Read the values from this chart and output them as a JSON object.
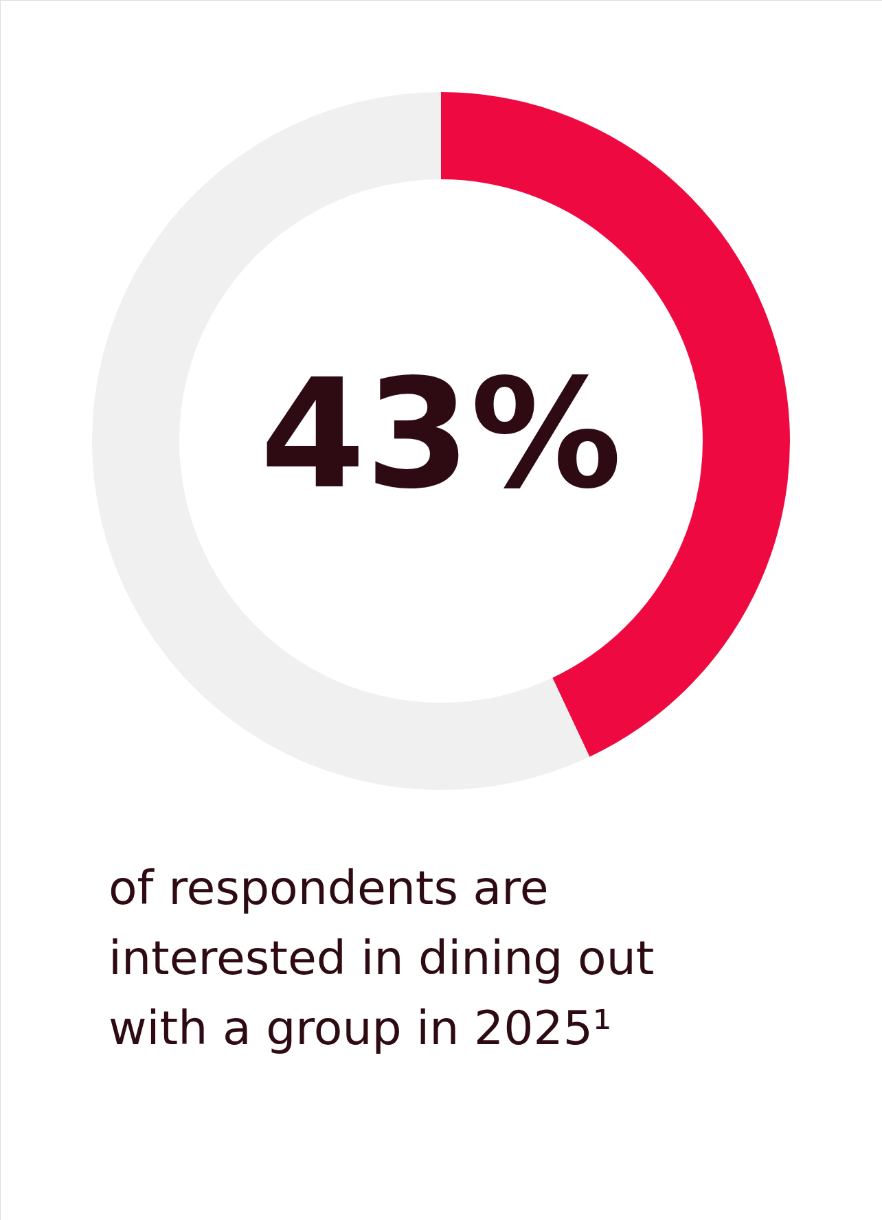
{
  "chart_data": {
    "type": "donut",
    "categories": [
      null,
      null
    ],
    "values": [
      43,
      57
    ],
    "colors": [
      "#ee0a40",
      "#f0f0f0"
    ],
    "value_labels": [
      "43%",
      null
    ],
    "annotations": [
      "of respondents are interested in dining out with a group in 2025¹"
    ]
  }
}
